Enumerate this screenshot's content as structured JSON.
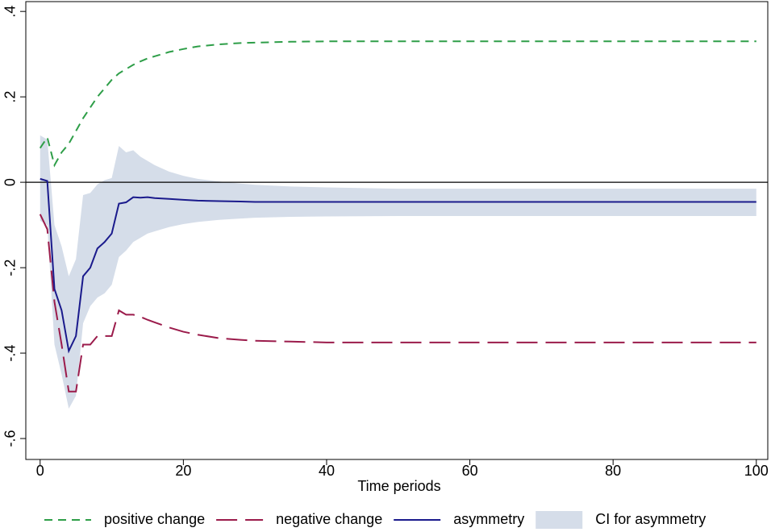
{
  "chart_data": {
    "type": "line",
    "x_label": "Time periods",
    "x": [
      0,
      1,
      2,
      3,
      4,
      5,
      6,
      7,
      8,
      9,
      10,
      11,
      12,
      13,
      14,
      15,
      16,
      18,
      20,
      22,
      25,
      28,
      30,
      35,
      40,
      50,
      60,
      70,
      80,
      90,
      100
    ],
    "xlim": [
      -2,
      101.6
    ],
    "xticks": [
      0,
      20,
      40,
      60,
      80,
      100
    ],
    "ylim": [
      -0.649,
      0.423
    ],
    "yticks": [
      {
        "value": 0.4,
        "label": ".4"
      },
      {
        "value": 0.2,
        "label": ".2"
      },
      0,
      {
        "value": -0.2,
        "label": "-.2"
      },
      {
        "value": -0.4,
        "label": "-.4"
      },
      {
        "value": -0.6,
        "label": "-.6"
      }
    ],
    "reference_line": 0,
    "bands": [
      {
        "name": "CI for asymmetry",
        "color": "#d5dde9",
        "lower": [
          -0.09,
          -0.1,
          -0.38,
          -0.45,
          -0.53,
          -0.5,
          -0.33,
          -0.29,
          -0.27,
          -0.26,
          -0.24,
          -0.175,
          -0.16,
          -0.14,
          -0.13,
          -0.12,
          -0.115,
          -0.105,
          -0.098,
          -0.093,
          -0.088,
          -0.085,
          -0.083,
          -0.081,
          -0.08,
          -0.079,
          -0.079,
          -0.079,
          -0.079,
          -0.079,
          -0.079
        ],
        "upper": [
          0.11,
          0.1,
          -0.1,
          -0.15,
          -0.22,
          -0.18,
          -0.03,
          -0.025,
          -0.005,
          0.005,
          0.01,
          0.085,
          0.07,
          0.075,
          0.06,
          0.05,
          0.04,
          0.025,
          0.015,
          0.008,
          0.002,
          -0.003,
          -0.006,
          -0.01,
          -0.012,
          -0.015,
          -0.015,
          -0.015,
          -0.015,
          -0.015,
          -0.015
        ]
      }
    ],
    "series": [
      {
        "name": "positive change",
        "color": "#2e9e48",
        "dash": "short",
        "values": [
          0.08,
          0.105,
          0.04,
          0.07,
          0.09,
          0.12,
          0.15,
          0.175,
          0.2,
          0.22,
          0.24,
          0.255,
          0.265,
          0.275,
          0.283,
          0.29,
          0.295,
          0.305,
          0.312,
          0.318,
          0.323,
          0.326,
          0.327,
          0.329,
          0.33,
          0.33,
          0.33,
          0.33,
          0.33,
          0.33,
          0.33
        ]
      },
      {
        "name": "negative change",
        "color": "#9b1b4b",
        "dash": "long",
        "values": [
          -0.075,
          -0.11,
          -0.28,
          -0.38,
          -0.49,
          -0.49,
          -0.38,
          -0.38,
          -0.36,
          -0.36,
          -0.36,
          -0.3,
          -0.31,
          -0.31,
          -0.315,
          -0.322,
          -0.328,
          -0.34,
          -0.35,
          -0.357,
          -0.365,
          -0.369,
          -0.371,
          -0.373,
          -0.375,
          -0.375,
          -0.375,
          -0.375,
          -0.375,
          -0.375,
          -0.375
        ]
      },
      {
        "name": "asymmetry",
        "color": "#1a1a8c",
        "dash": "solid",
        "values": [
          0.008,
          0.003,
          -0.25,
          -0.3,
          -0.395,
          -0.36,
          -0.22,
          -0.2,
          -0.155,
          -0.14,
          -0.12,
          -0.05,
          -0.047,
          -0.035,
          -0.036,
          -0.035,
          -0.037,
          -0.039,
          -0.041,
          -0.043,
          -0.044,
          -0.045,
          -0.046,
          -0.046,
          -0.046,
          -0.046,
          -0.046,
          -0.046,
          -0.046,
          -0.046,
          -0.046
        ]
      }
    ]
  }
}
